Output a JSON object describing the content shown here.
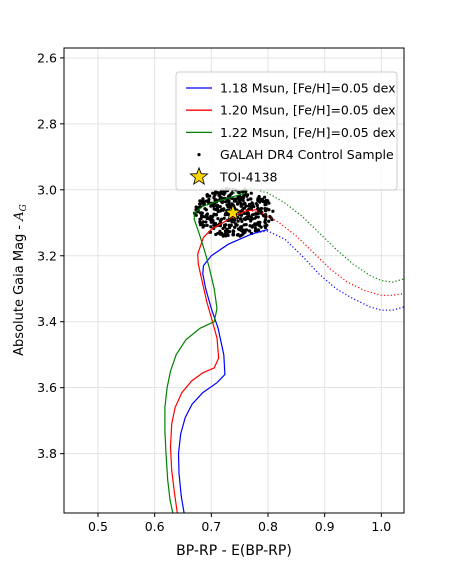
{
  "chart_data": {
    "type": "line",
    "xlabel": "BP-RP - E(BP-RP)",
    "ylabel": "Absolute Gaia Mag - A_G",
    "ylabel_parts": {
      "main": "Absolute Gaia Mag - ",
      "sym": "A",
      "sub": "G"
    },
    "xlim": [
      0.44,
      1.04
    ],
    "ylim": [
      3.98,
      2.57
    ],
    "y_inverted": true,
    "grid": true,
    "legend_position": "top-right",
    "xticks": [
      0.5,
      0.6,
      0.7,
      0.8,
      0.9,
      1.0
    ],
    "xtick_labels": [
      "0.5",
      "0.6",
      "0.7",
      "0.8",
      "0.9",
      "1.0"
    ],
    "yticks": [
      2.6,
      2.8,
      3.0,
      3.2,
      3.4,
      3.6,
      3.8
    ],
    "ytick_labels": [
      "2.6",
      "2.8",
      "3.0",
      "3.2",
      "3.4",
      "3.6",
      "3.8"
    ],
    "series": [
      {
        "name": "1.18 Msun, [Fe/H]=0.05 dex",
        "color": "#0000ff",
        "solid": [
          [
            0.652,
            3.98
          ],
          [
            0.647,
            3.93
          ],
          [
            0.643,
            3.86
          ],
          [
            0.642,
            3.8
          ],
          [
            0.646,
            3.74
          ],
          [
            0.654,
            3.69
          ],
          [
            0.666,
            3.65
          ],
          [
            0.685,
            3.615
          ],
          [
            0.71,
            3.585
          ],
          [
            0.724,
            3.56
          ],
          [
            0.722,
            3.5
          ],
          [
            0.712,
            3.42
          ],
          [
            0.7,
            3.36
          ],
          [
            0.69,
            3.3
          ],
          [
            0.685,
            3.255
          ],
          [
            0.686,
            3.23
          ],
          [
            0.7,
            3.2
          ],
          [
            0.73,
            3.165
          ],
          [
            0.77,
            3.135
          ],
          [
            0.8,
            3.12
          ]
        ],
        "dotted": [
          [
            0.78,
            3.13
          ],
          [
            0.8,
            3.125
          ],
          [
            0.83,
            3.15
          ],
          [
            0.86,
            3.2
          ],
          [
            0.89,
            3.255
          ],
          [
            0.92,
            3.3
          ],
          [
            0.95,
            3.33
          ],
          [
            0.98,
            3.355
          ],
          [
            1.0,
            3.365
          ],
          [
            1.02,
            3.365
          ],
          [
            1.04,
            3.355
          ]
        ]
      },
      {
        "name": "1.20 Msun, [Fe/H]=0.05 dex",
        "color": "#ff0000",
        "solid": [
          [
            0.64,
            3.98
          ],
          [
            0.635,
            3.92
          ],
          [
            0.63,
            3.85
          ],
          [
            0.628,
            3.78
          ],
          [
            0.63,
            3.71
          ],
          [
            0.636,
            3.66
          ],
          [
            0.648,
            3.615
          ],
          [
            0.665,
            3.58
          ],
          [
            0.685,
            3.555
          ],
          [
            0.705,
            3.54
          ],
          [
            0.713,
            3.51
          ],
          [
            0.71,
            3.45
          ],
          [
            0.702,
            3.4
          ],
          [
            0.692,
            3.34
          ],
          [
            0.684,
            3.28
          ],
          [
            0.677,
            3.225
          ],
          [
            0.676,
            3.195
          ],
          [
            0.686,
            3.145
          ],
          [
            0.7,
            3.12
          ],
          [
            0.72,
            3.1
          ],
          [
            0.74,
            3.08
          ],
          [
            0.76,
            3.065
          ],
          [
            0.78,
            3.06
          ]
        ],
        "dotted": [
          [
            0.76,
            3.06
          ],
          [
            0.79,
            3.07
          ],
          [
            0.82,
            3.1
          ],
          [
            0.85,
            3.14
          ],
          [
            0.88,
            3.19
          ],
          [
            0.91,
            3.24
          ],
          [
            0.94,
            3.28
          ],
          [
            0.97,
            3.305
          ],
          [
            1.0,
            3.32
          ],
          [
            1.02,
            3.32
          ],
          [
            1.04,
            3.315
          ]
        ]
      },
      {
        "name": "1.22 Msun, [Fe/H]=0.05 dex",
        "color": "#008000",
        "solid": [
          [
            0.632,
            3.98
          ],
          [
            0.627,
            3.94
          ],
          [
            0.623,
            3.88
          ],
          [
            0.62,
            3.8
          ],
          [
            0.618,
            3.73
          ],
          [
            0.618,
            3.66
          ],
          [
            0.622,
            3.6
          ],
          [
            0.628,
            3.55
          ],
          [
            0.638,
            3.5
          ],
          [
            0.655,
            3.455
          ],
          [
            0.68,
            3.42
          ],
          [
            0.705,
            3.4
          ],
          [
            0.71,
            3.36
          ],
          [
            0.705,
            3.3
          ],
          [
            0.697,
            3.24
          ],
          [
            0.689,
            3.19
          ],
          [
            0.678,
            3.13
          ],
          [
            0.67,
            3.09
          ],
          [
            0.67,
            3.07
          ],
          [
            0.685,
            3.05
          ],
          [
            0.71,
            3.035
          ],
          [
            0.74,
            3.02
          ],
          [
            0.76,
            3.01
          ]
        ],
        "dotted": [
          [
            0.74,
            3.01
          ],
          [
            0.77,
            2.995
          ],
          [
            0.8,
            3.01
          ],
          [
            0.83,
            3.04
          ],
          [
            0.86,
            3.08
          ],
          [
            0.89,
            3.13
          ],
          [
            0.92,
            3.18
          ],
          [
            0.95,
            3.225
          ],
          [
            0.98,
            3.26
          ],
          [
            1.0,
            3.275
          ],
          [
            1.02,
            3.28
          ],
          [
            1.04,
            3.27
          ]
        ]
      }
    ],
    "control_sample": {
      "name": "GALAH DR4 Control Sample",
      "color": "#000000",
      "center": [
        0.74,
        3.07
      ],
      "radius_x": 0.07,
      "radius_y": 0.075,
      "count": 420
    },
    "target": {
      "name": "TOI-4138",
      "x": 0.738,
      "y": 3.07,
      "fill": "#ffd700",
      "edge": "#000000"
    }
  }
}
